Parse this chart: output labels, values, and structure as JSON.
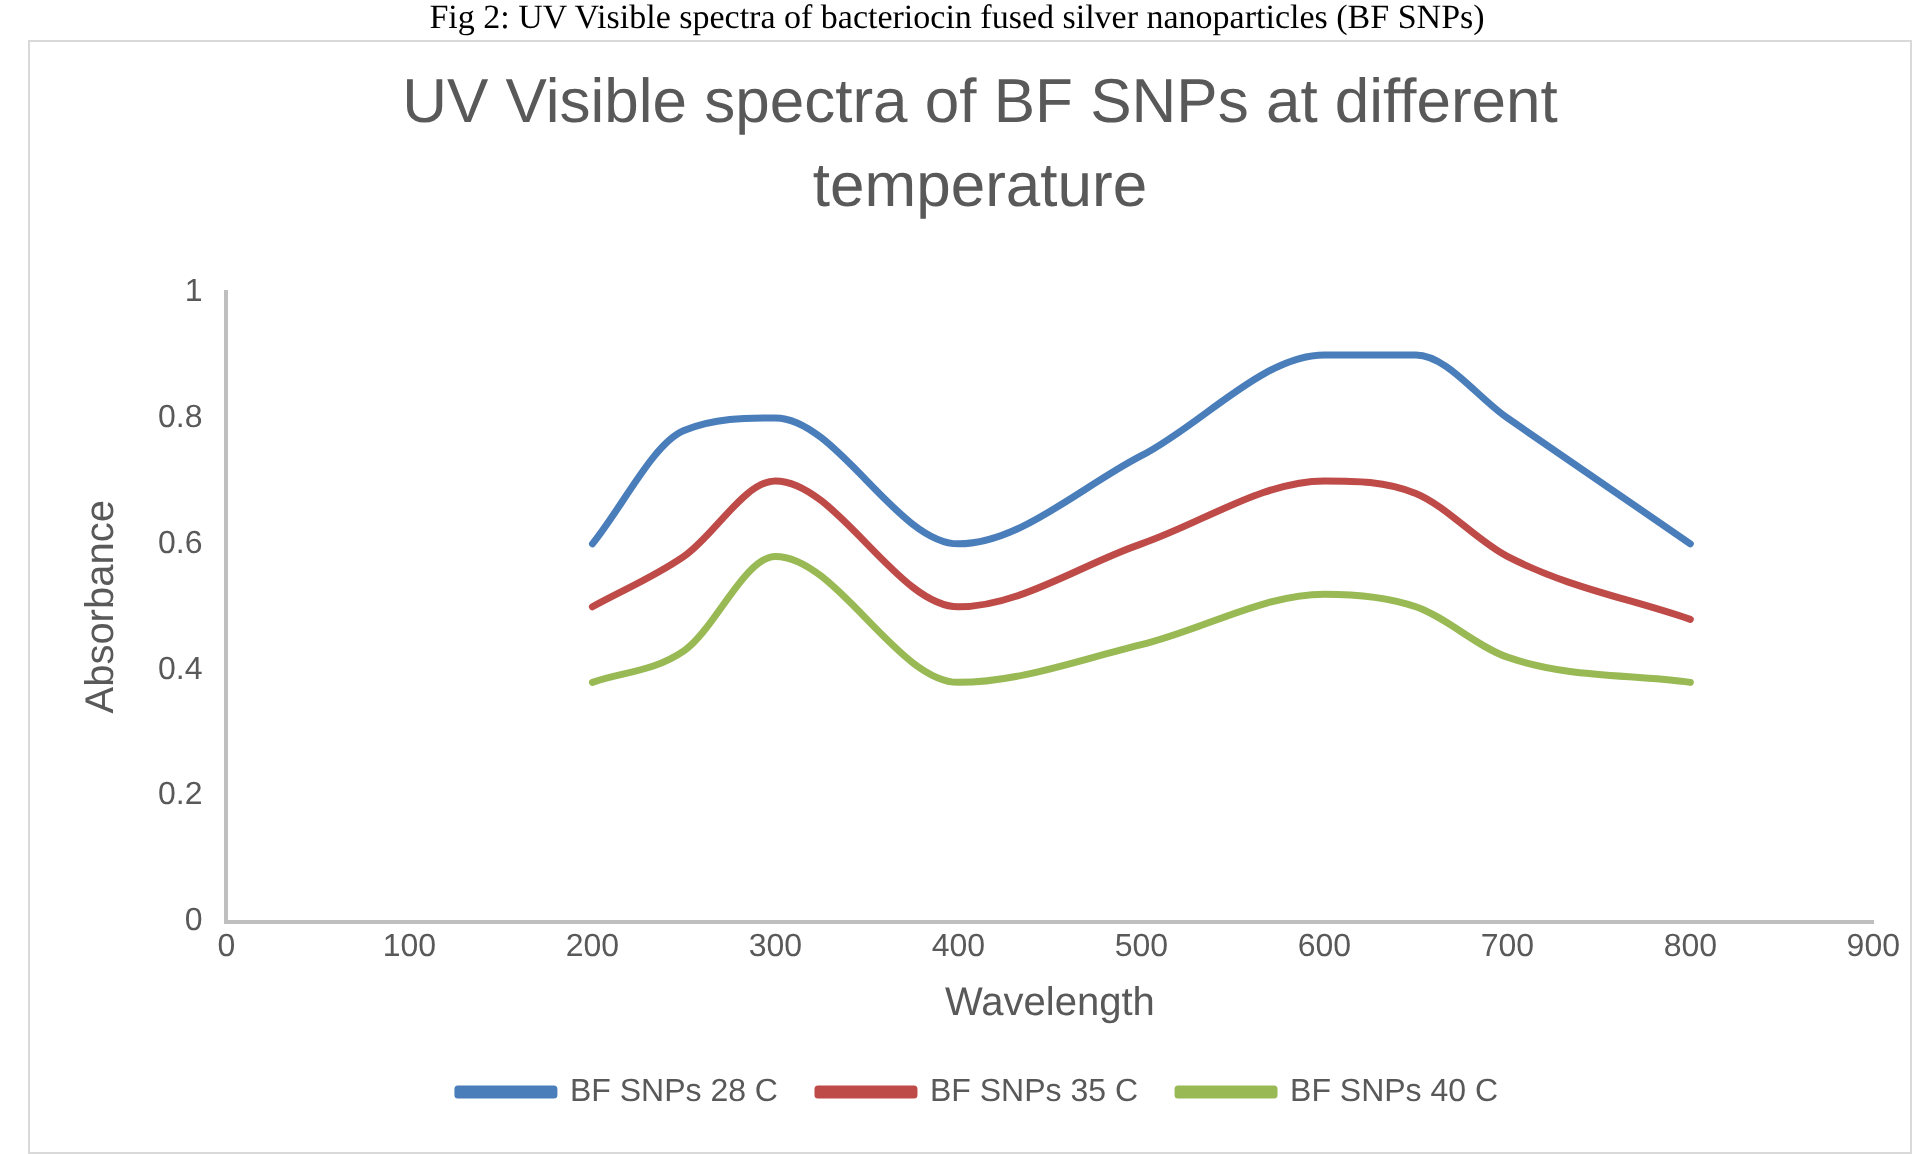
{
  "chart_data": {
    "type": "line",
    "title": "UV Visible spectra of BF SNPs at different temperature",
    "xlabel": "Wavelength",
    "ylabel": "Absorbance",
    "annotations": [
      "Fig 2: UV Visible spectra of bacteriocin fused silver nanoparticles (BF SNPs)"
    ],
    "x": [
      200,
      250,
      300,
      400,
      500,
      600,
      650,
      700,
      800
    ],
    "series": [
      {
        "name": "BF SNPs 28 C",
        "color": "#4a7ebb",
        "values": [
          0.6,
          0.78,
          0.8,
          0.6,
          0.74,
          0.9,
          0.9,
          0.8,
          0.6
        ]
      },
      {
        "name": "BF SNPs 35 C",
        "color": "#be4b48",
        "values": [
          0.5,
          0.58,
          0.7,
          0.5,
          0.6,
          0.7,
          0.68,
          0.58,
          0.48
        ]
      },
      {
        "name": "BF SNPs 40 C",
        "color": "#98b954",
        "values": [
          0.38,
          0.43,
          0.58,
          0.38,
          0.44,
          0.52,
          0.5,
          0.42,
          0.38
        ]
      }
    ],
    "xlim": [
      0,
      900
    ],
    "xticks": [
      0,
      100,
      200,
      300,
      400,
      500,
      600,
      700,
      800,
      900
    ],
    "ylim": [
      0,
      1
    ],
    "yticks": [
      0,
      0.2,
      0.4,
      0.6,
      0.8,
      1
    ],
    "grid": false,
    "legend": "bottom",
    "marker": "none",
    "line_style": "solid"
  }
}
